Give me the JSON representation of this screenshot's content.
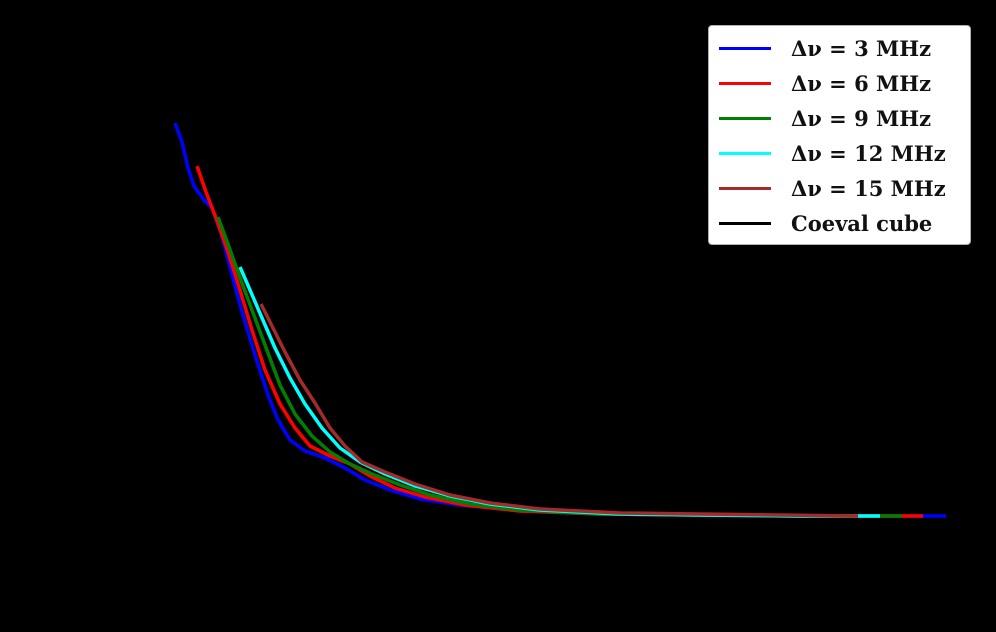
{
  "chart_data": {
    "type": "line",
    "title": "",
    "xlabel": "",
    "ylabel": "",
    "grid": false,
    "axes_visible": false,
    "legend_position": "upper right",
    "background": "#000000",
    "coordinate_space": "pixel (approximate, image coordinates; axes not visible)",
    "series": [
      {
        "name": "Δν = 3 MHz",
        "color": "#0000ff",
        "points": [
          [
            175,
            123
          ],
          [
            182,
            142
          ],
          [
            188,
            168
          ],
          [
            194,
            186
          ],
          [
            204,
            200
          ],
          [
            212,
            208
          ],
          [
            222,
            236
          ],
          [
            232,
            275
          ],
          [
            242,
            312
          ],
          [
            255,
            355
          ],
          [
            268,
            395
          ],
          [
            278,
            420
          ],
          [
            290,
            440
          ],
          [
            305,
            451
          ],
          [
            325,
            458
          ],
          [
            345,
            468
          ],
          [
            365,
            480
          ],
          [
            390,
            490
          ],
          [
            420,
            499
          ],
          [
            460,
            505
          ],
          [
            520,
            511
          ],
          [
            600,
            514
          ],
          [
            700,
            515
          ],
          [
            800,
            516
          ],
          [
            946,
            516
          ]
        ]
      },
      {
        "name": "Δν = 6 MHz",
        "color": "#ff0000",
        "points": [
          [
            197,
            166
          ],
          [
            206,
            192
          ],
          [
            216,
            218
          ],
          [
            228,
            252
          ],
          [
            240,
            290
          ],
          [
            252,
            330
          ],
          [
            265,
            370
          ],
          [
            280,
            404
          ],
          [
            295,
            428
          ],
          [
            310,
            446
          ],
          [
            330,
            456
          ],
          [
            350,
            464
          ],
          [
            370,
            476
          ],
          [
            395,
            488
          ],
          [
            425,
            497
          ],
          [
            465,
            505
          ],
          [
            520,
            511
          ],
          [
            600,
            514
          ],
          [
            700,
            515
          ],
          [
            800,
            516
          ],
          [
            923,
            516
          ]
        ]
      },
      {
        "name": "Δν = 9 MHz",
        "color": "#008000",
        "points": [
          [
            218,
            217
          ],
          [
            228,
            244
          ],
          [
            240,
            278
          ],
          [
            252,
            310
          ],
          [
            265,
            345
          ],
          [
            280,
            385
          ],
          [
            295,
            414
          ],
          [
            312,
            436
          ],
          [
            330,
            452
          ],
          [
            350,
            464
          ],
          [
            372,
            474
          ],
          [
            400,
            485
          ],
          [
            430,
            495
          ],
          [
            470,
            504
          ],
          [
            520,
            510
          ],
          [
            600,
            514
          ],
          [
            700,
            515
          ],
          [
            800,
            516
          ],
          [
            902,
            516
          ]
        ]
      },
      {
        "name": "Δν = 12 MHz",
        "color": "#00ffff",
        "points": [
          [
            240,
            267
          ],
          [
            250,
            290
          ],
          [
            262,
            318
          ],
          [
            275,
            348
          ],
          [
            290,
            378
          ],
          [
            305,
            404
          ],
          [
            322,
            428
          ],
          [
            340,
            448
          ],
          [
            360,
            462
          ],
          [
            385,
            474
          ],
          [
            415,
            486
          ],
          [
            450,
            496
          ],
          [
            490,
            504
          ],
          [
            540,
            510
          ],
          [
            620,
            514
          ],
          [
            700,
            515
          ],
          [
            800,
            516
          ],
          [
            880,
            516
          ]
        ]
      },
      {
        "name": "Δν = 15 MHz",
        "color": "#a52a2a",
        "points": [
          [
            261,
            304
          ],
          [
            272,
            326
          ],
          [
            285,
            352
          ],
          [
            300,
            380
          ],
          [
            315,
            403
          ],
          [
            330,
            428
          ],
          [
            345,
            446
          ],
          [
            362,
            462
          ],
          [
            385,
            472
          ],
          [
            415,
            484
          ],
          [
            450,
            495
          ],
          [
            490,
            503
          ],
          [
            540,
            509
          ],
          [
            620,
            513
          ],
          [
            700,
            514
          ],
          [
            780,
            515
          ],
          [
            858,
            516
          ]
        ]
      },
      {
        "name": "Coeval cube",
        "color": "#000000",
        "points": []
      }
    ]
  },
  "legend": {
    "items": [
      {
        "label": "Δν = 3 MHz",
        "color": "#0000ff"
      },
      {
        "label": "Δν = 6 MHz",
        "color": "#ff0000"
      },
      {
        "label": "Δν = 9 MHz",
        "color": "#008000"
      },
      {
        "label": "Δν = 12 MHz",
        "color": "#00ffff"
      },
      {
        "label": "Δν = 15 MHz",
        "color": "#a52a2a"
      },
      {
        "label": "Coeval cube",
        "color": "#000000"
      }
    ]
  }
}
